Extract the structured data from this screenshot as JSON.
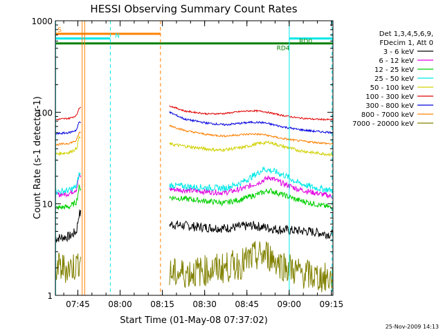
{
  "chart_data": {
    "type": "line",
    "title": "HESSI Observing Summary Count Rates",
    "xlabel": "Start Time (01-May-08 07:37:02)",
    "ylabel": "Count Rate (s-1 detector-1)",
    "y_scale": "log",
    "ylim": [
      1,
      1000
    ],
    "xlim_minutes": [
      0,
      98.5
    ],
    "y_ticks": [
      "1",
      "10",
      "100",
      "1000"
    ],
    "x_ticks": [
      {
        "minute": 7.97,
        "label": "07:45"
      },
      {
        "minute": 22.97,
        "label": "08:00"
      },
      {
        "minute": 37.97,
        "label": "08:15"
      },
      {
        "minute": 52.97,
        "label": "08:30"
      },
      {
        "minute": 67.97,
        "label": "08:45"
      },
      {
        "minute": 82.97,
        "label": "09:00"
      },
      {
        "minute": 97.97,
        "label": "09:15"
      }
    ],
    "legend_header": [
      "Det 1,3,4,5,6,9,",
      "FDecim 1, Att 0"
    ],
    "footer_date": "25-Nov-2009 14:13",
    "gap": [
      9.0,
      40.5
    ],
    "series": [
      {
        "name": "3 - 6 keV",
        "color": "#000000",
        "profile": [
          [
            0,
            4.2
          ],
          [
            5,
            4.4
          ],
          [
            7.5,
            5.0
          ],
          [
            8.4,
            7.8
          ],
          [
            40.5,
            6.0
          ],
          [
            50,
            5.6
          ],
          [
            60,
            5.4
          ],
          [
            70,
            5.8
          ],
          [
            80,
            5.2
          ],
          [
            90,
            5.0
          ],
          [
            98.5,
            4.6
          ]
        ],
        "noise": 0.12
      },
      {
        "name": "6 - 12 keV",
        "color": "#e000e0",
        "profile": [
          [
            0,
            12.5
          ],
          [
            5,
            13.0
          ],
          [
            7.5,
            14.5
          ],
          [
            8.4,
            20
          ],
          [
            40.5,
            14.5
          ],
          [
            50,
            13.8
          ],
          [
            60,
            13.2
          ],
          [
            66,
            14.5
          ],
          [
            72,
            17
          ],
          [
            76,
            19.5
          ],
          [
            80,
            17
          ],
          [
            86,
            14.5
          ],
          [
            92,
            13.2
          ],
          [
            98.5,
            12
          ]
        ],
        "noise": 0.07
      },
      {
        "name": "12 - 25 keV",
        "color": "#00d000",
        "profile": [
          [
            0,
            9.0
          ],
          [
            5,
            9.3
          ],
          [
            7.5,
            10.5
          ],
          [
            8.4,
            15
          ],
          [
            40.5,
            11.8
          ],
          [
            50,
            11.0
          ],
          [
            60,
            10.2
          ],
          [
            66,
            11.2
          ],
          [
            72,
            12.8
          ],
          [
            76,
            14
          ],
          [
            80,
            12.8
          ],
          [
            86,
            11
          ],
          [
            92,
            10
          ],
          [
            98.5,
            9.0
          ]
        ],
        "noise": 0.07
      },
      {
        "name": "25 - 50 keV",
        "color": "#00e8e8",
        "profile": [
          [
            0,
            13.5
          ],
          [
            5,
            14
          ],
          [
            7.5,
            15.5
          ],
          [
            8.4,
            21
          ],
          [
            40.5,
            16
          ],
          [
            50,
            15.2
          ],
          [
            60,
            14.8
          ],
          [
            66,
            17
          ],
          [
            70,
            20
          ],
          [
            74,
            24
          ],
          [
            78,
            22.5
          ],
          [
            82,
            20
          ],
          [
            86,
            17
          ],
          [
            92,
            15
          ],
          [
            98.5,
            14
          ]
        ],
        "noise": 0.08
      },
      {
        "name": "50 - 100 keV",
        "color": "#d0d000",
        "profile": [
          [
            0,
            35
          ],
          [
            5,
            36.5
          ],
          [
            7.5,
            40
          ],
          [
            8.4,
            53
          ],
          [
            40.5,
            45
          ],
          [
            50,
            41
          ],
          [
            58,
            38.5
          ],
          [
            66,
            41
          ],
          [
            72,
            45.5
          ],
          [
            76,
            47
          ],
          [
            80,
            43
          ],
          [
            86,
            38.5
          ],
          [
            92,
            36
          ],
          [
            98.5,
            34.5
          ]
        ],
        "noise": 0.04
      },
      {
        "name": "100 - 300 keV",
        "color": "#e00000",
        "profile": [
          [
            0,
            83
          ],
          [
            5,
            86
          ],
          [
            7.5,
            92
          ],
          [
            8.4,
            112
          ],
          [
            40.5,
            118
          ],
          [
            46,
            103
          ],
          [
            54,
            96
          ],
          [
            60,
            97
          ],
          [
            66,
            102
          ],
          [
            70,
            104
          ],
          [
            74,
            102
          ],
          [
            80,
            93
          ],
          [
            86,
            87
          ],
          [
            92,
            84
          ],
          [
            98.5,
            83
          ]
        ],
        "noise": 0.02
      },
      {
        "name": "300 - 800 keV",
        "color": "#0000e0",
        "profile": [
          [
            0,
            58
          ],
          [
            5,
            60
          ],
          [
            7.5,
            64
          ],
          [
            8.4,
            78
          ],
          [
            40.5,
            100
          ],
          [
            46,
            84
          ],
          [
            54,
            76
          ],
          [
            60,
            73
          ],
          [
            66,
            76
          ],
          [
            70,
            78
          ],
          [
            74,
            77
          ],
          [
            80,
            70
          ],
          [
            86,
            65
          ],
          [
            92,
            62
          ],
          [
            98.5,
            60
          ]
        ],
        "noise": 0.025
      },
      {
        "name": "800 - 7000 keV",
        "color": "#ff8000",
        "profile": [
          [
            0,
            44
          ],
          [
            5,
            46
          ],
          [
            7.5,
            49
          ],
          [
            8.4,
            60
          ],
          [
            40.5,
            72
          ],
          [
            46,
            63
          ],
          [
            54,
            57
          ],
          [
            60,
            55
          ],
          [
            66,
            57
          ],
          [
            70,
            58
          ],
          [
            74,
            57
          ],
          [
            80,
            52
          ],
          [
            86,
            49
          ],
          [
            92,
            47
          ],
          [
            98.5,
            45
          ]
        ],
        "noise": 0.025
      },
      {
        "name": "7000 - 20000 keV",
        "color": "#808000",
        "profile": [
          [
            0,
            2.0
          ],
          [
            5,
            2.0
          ],
          [
            7.5,
            2.1
          ],
          [
            8.4,
            2.4
          ],
          [
            40.5,
            1.7
          ],
          [
            50,
            1.8
          ],
          [
            60,
            2.0
          ],
          [
            66,
            2.2
          ],
          [
            70,
            2.6
          ],
          [
            75,
            2.8
          ],
          [
            80,
            2.2
          ],
          [
            86,
            1.8
          ],
          [
            92,
            1.6
          ],
          [
            98.5,
            1.5
          ]
        ],
        "noise": 0.4
      }
    ],
    "flag_bars": [
      {
        "label": "S",
        "color": "#ff8000",
        "x0": 0,
        "x1": 37.3,
        "level": 720
      },
      {
        "label": "N",
        "color": "#00e8e8",
        "x0": 0,
        "x1": 19.5,
        "level": 640
      },
      {
        "label": "",
        "color": "#00e8e8",
        "x0": 83,
        "x1": 98.5,
        "level": 640
      },
      {
        "label": "",
        "color": "#008000",
        "x0": 0,
        "x1": 98.5,
        "level": 565
      }
    ],
    "flag_labels": [
      {
        "text": "S",
        "color": "#ff8000",
        "minute": 0.8,
        "level": 800
      },
      {
        "text": "N",
        "color": "#00e8e8",
        "minute": 21.2,
        "level": 690
      },
      {
        "text": "RD0",
        "color": "#008000",
        "minute": 86.5,
        "level": 600
      },
      {
        "text": "RD4",
        "color": "#008000",
        "minute": 78.5,
        "level": 505
      }
    ],
    "vertical_markers": [
      {
        "minute": 0.1,
        "color": "#00e8e8",
        "style": "solid"
      },
      {
        "minute": 9.5,
        "color": "#ff8000",
        "style": "solid"
      },
      {
        "minute": 10.4,
        "color": "#ff8000",
        "style": "solid"
      },
      {
        "minute": 19.5,
        "color": "#00e8e8",
        "style": "dashed"
      },
      {
        "minute": 37.3,
        "color": "#ff8000",
        "style": "dashed"
      },
      {
        "minute": 83.0,
        "color": "#00e8e8",
        "style": "solid"
      },
      {
        "minute": 98.2,
        "color": "#00e8e8",
        "style": "dashed"
      }
    ]
  }
}
